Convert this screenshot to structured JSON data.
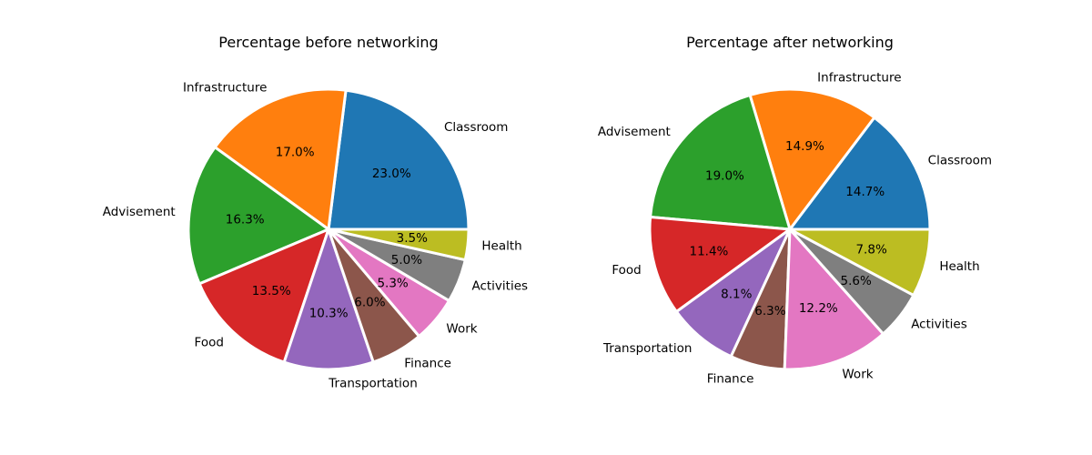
{
  "chart_data": [
    {
      "type": "pie",
      "title": "Percentage before networking",
      "categories": [
        "Classroom",
        "Infrastructure",
        "Advisement",
        "Food",
        "Transportation",
        "Finance",
        "Work",
        "Activities",
        "Health"
      ],
      "values": [
        23.0,
        17.0,
        16.3,
        13.5,
        10.3,
        6.0,
        5.3,
        5.0,
        3.5
      ],
      "value_labels": [
        "23.0%",
        "17.0%",
        "16.3%",
        "13.5%",
        "10.3%",
        "6.0%",
        "5.3%",
        "5.0%",
        "3.5%"
      ],
      "colors": [
        "#1f77b4",
        "#ff7f0e",
        "#2ca02c",
        "#d62728",
        "#9467bd",
        "#8c564b",
        "#e377c2",
        "#7f7f7f",
        "#bcbd22"
      ],
      "start_angle_deg": 0,
      "direction": "counterclockwise"
    },
    {
      "type": "pie",
      "title": "Percentage after networking",
      "categories": [
        "Classroom",
        "Infrastructure",
        "Advisement",
        "Food",
        "Transportation",
        "Finance",
        "Work",
        "Activities",
        "Health"
      ],
      "values": [
        14.7,
        14.9,
        19.0,
        11.4,
        8.1,
        6.3,
        12.2,
        5.6,
        7.8
      ],
      "value_labels": [
        "14.7%",
        "14.9%",
        "19.0%",
        "11.4%",
        "8.1%",
        "6.3%",
        "12.2%",
        "5.6%",
        "7.8%"
      ],
      "colors": [
        "#1f77b4",
        "#ff7f0e",
        "#2ca02c",
        "#d62728",
        "#9467bd",
        "#8c564b",
        "#e377c2",
        "#7f7f7f",
        "#bcbd22"
      ],
      "start_angle_deg": 0,
      "direction": "counterclockwise"
    }
  ]
}
